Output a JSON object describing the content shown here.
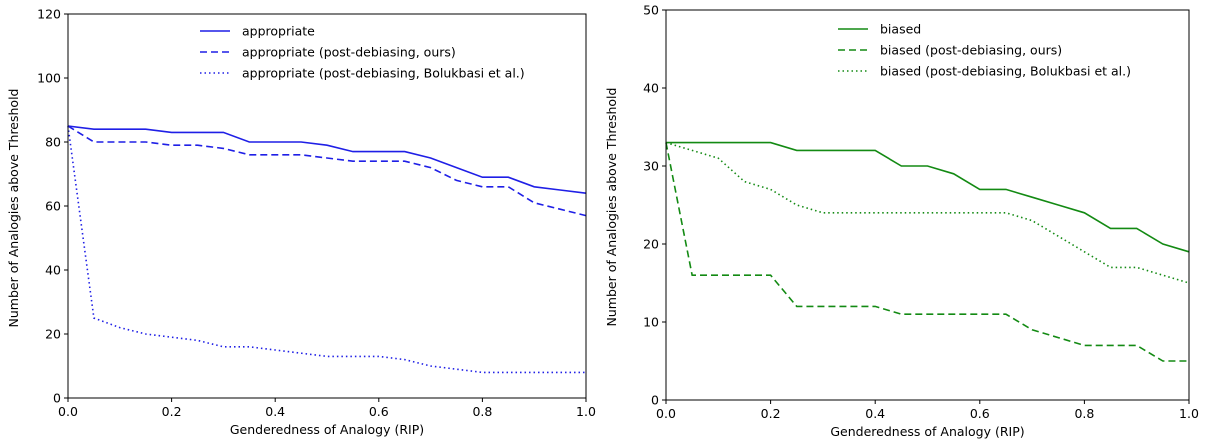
{
  "chart_data": [
    {
      "type": "line",
      "xlabel": "Genderedness of Analogy (RIP)",
      "ylabel": "Number of Analogies above Threshold",
      "xlim": [
        0,
        1
      ],
      "ylim": [
        0,
        120
      ],
      "xticks": [
        0,
        0.2,
        0.4,
        0.6,
        0.8,
        1.0
      ],
      "xtick_labels": [
        "0.0",
        "0.2",
        "0.4",
        "0.6",
        "0.8",
        "1.0"
      ],
      "yticks": [
        0,
        20,
        40,
        60,
        80,
        100,
        120
      ],
      "ytick_labels": [
        "0",
        "20",
        "40",
        "60",
        "80",
        "100",
        "120"
      ],
      "grid": false,
      "legend_position": "top-right",
      "x": [
        0,
        0.05,
        0.1,
        0.15,
        0.2,
        0.25,
        0.3,
        0.35,
        0.4,
        0.45,
        0.5,
        0.55,
        0.6,
        0.65,
        0.7,
        0.75,
        0.8,
        0.85,
        0.9,
        0.95,
        1.0
      ],
      "series": [
        {
          "name": "appropriate",
          "style": "solid",
          "color": "#1f1fe6",
          "values": [
            85,
            84,
            84,
            84,
            83,
            83,
            83,
            80,
            80,
            80,
            79,
            77,
            77,
            77,
            75,
            72,
            69,
            69,
            66,
            65,
            64
          ]
        },
        {
          "name": "appropriate (post-debiasing, ours)",
          "style": "dashed",
          "color": "#1f1fe6",
          "values": [
            85,
            80,
            80,
            80,
            79,
            79,
            78,
            76,
            76,
            76,
            75,
            74,
            74,
            74,
            72,
            68,
            66,
            66,
            61,
            59,
            57
          ]
        },
        {
          "name": "appropriate (post-debiasing, Bolukbasi et al.)",
          "style": "dotted",
          "color": "#1f1fe6",
          "values": [
            85,
            25,
            22,
            20,
            19,
            18,
            16,
            16,
            15,
            14,
            13,
            13,
            13,
            12,
            10,
            9,
            8,
            8,
            8,
            8,
            8
          ]
        }
      ]
    },
    {
      "type": "line",
      "xlabel": "Genderedness of Analogy (RIP)",
      "ylabel": "Number of Analogies above Threshold",
      "xlim": [
        0,
        1
      ],
      "ylim": [
        0,
        50
      ],
      "xticks": [
        0,
        0.2,
        0.4,
        0.6,
        0.8,
        1.0
      ],
      "xtick_labels": [
        "0.0",
        "0.2",
        "0.4",
        "0.6",
        "0.8",
        "1.0"
      ],
      "yticks": [
        0,
        10,
        20,
        30,
        40,
        50
      ],
      "ytick_labels": [
        "0",
        "10",
        "20",
        "30",
        "40",
        "50"
      ],
      "grid": false,
      "legend_position": "top-right",
      "x": [
        0,
        0.05,
        0.1,
        0.15,
        0.2,
        0.25,
        0.3,
        0.35,
        0.4,
        0.45,
        0.5,
        0.55,
        0.6,
        0.65,
        0.7,
        0.75,
        0.8,
        0.85,
        0.9,
        0.95,
        1.0
      ],
      "series": [
        {
          "name": "biased",
          "style": "solid",
          "color": "#138a13",
          "values": [
            33,
            33,
            33,
            33,
            33,
            32,
            32,
            32,
            32,
            30,
            30,
            29,
            27,
            27,
            26,
            25,
            24,
            22,
            22,
            20,
            19
          ]
        },
        {
          "name": "biased (post-debiasing, ours)",
          "style": "dashed",
          "color": "#138a13",
          "values": [
            33,
            16,
            16,
            16,
            16,
            12,
            12,
            12,
            12,
            11,
            11,
            11,
            11,
            11,
            9,
            8,
            7,
            7,
            7,
            5,
            5
          ]
        },
        {
          "name": "biased (post-debiasing, Bolukbasi et al.)",
          "style": "dotted",
          "color": "#138a13",
          "values": [
            33,
            32,
            31,
            28,
            27,
            25,
            24,
            24,
            24,
            24,
            24,
            24,
            24,
            24,
            23,
            21,
            19,
            17,
            17,
            16,
            15
          ]
        }
      ]
    }
  ]
}
